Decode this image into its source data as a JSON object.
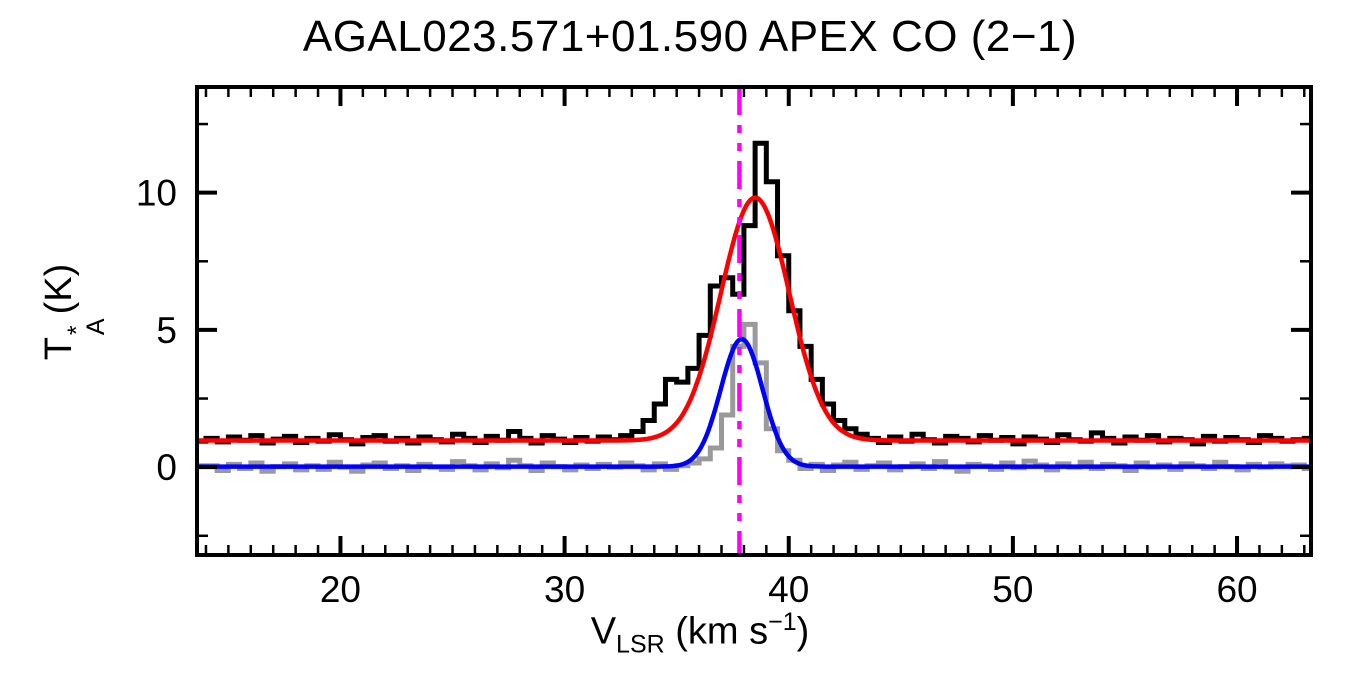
{
  "title": "AGAL023.571+01.590  APEX CO (2−1)",
  "axes": {
    "x": {
      "symbol": "V",
      "subscript": "LSR",
      "unit_prefix": " (km s",
      "unit_exponent": "−1",
      "unit_suffix": ")",
      "tick_labels": [
        "20",
        "30",
        "40",
        "50",
        "60"
      ]
    },
    "y": {
      "symbol": "T",
      "superscript": "*",
      "subscript": "A",
      "unit": "(K)",
      "tick_labels": [
        "0",
        "5",
        "10"
      ]
    }
  },
  "colors": {
    "background": "#ffffff",
    "frame": "#000000",
    "spectrum_main": "#000000",
    "spectrum_secondary": "#9a9a9a",
    "fit_main": "#ff0000",
    "fit_secondary": "#0000ff",
    "velocity_marker": "#ff00ff"
  },
  "chart_data": {
    "type": "line",
    "title": "AGAL023.571+01.590  APEX CO (2−1)",
    "xlabel": "V_LSR (km s^-1)",
    "ylabel": "T_A^* (K)",
    "xlim": [
      13.6,
      63.3
    ],
    "ylim": [
      -3.2,
      13.85
    ],
    "xticks_major": [
      20,
      30,
      40,
      50,
      60
    ],
    "xtick_minor_interval": 1,
    "yticks_major": [
      0,
      5,
      10
    ],
    "ytick_minor_interval": 2.5,
    "grid": false,
    "legend": false,
    "vline": {
      "name": "systemic-velocity-marker",
      "x": 37.8,
      "color": "#ff00ff",
      "style": "dash-dot-dot"
    },
    "series": [
      {
        "name": "co-2-1-spectrum",
        "type": "histogram",
        "color": "#000000",
        "line_width": 5,
        "v0": 13.5,
        "dv": 0.5,
        "values": [
          0.95,
          1.05,
          0.92,
          1.1,
          0.98,
          1.15,
          0.88,
          1.02,
          1.12,
          0.9,
          1.05,
          0.95,
          1.18,
          1.0,
          0.85,
          1.08,
          1.15,
          0.95,
          1.05,
          0.88,
          1.1,
          1.0,
          0.92,
          1.2,
          1.05,
          0.9,
          1.12,
          0.98,
          1.3,
          1.05,
          0.88,
          1.15,
          1.02,
          0.9,
          1.08,
          0.95,
          1.1,
          1.0,
          1.15,
          1.3,
          1.7,
          2.3,
          3.2,
          3.1,
          3.6,
          4.8,
          6.6,
          6.9,
          6.3,
          8.8,
          11.8,
          10.4,
          7.7,
          5.7,
          4.4,
          3.2,
          2.3,
          1.7,
          1.4,
          1.2,
          1.05,
          0.9,
          1.1,
          0.95,
          1.2,
          1.0,
          0.88,
          1.12,
          1.05,
          0.92,
          1.15,
          0.98,
          1.08,
          0.85,
          1.1,
          1.02,
          0.9,
          1.18,
          1.0,
          0.95,
          1.25,
          1.05,
          0.88,
          1.1,
          0.98,
          1.15,
          0.92,
          1.05,
          1.0,
          0.85,
          1.12,
          0.95,
          1.08,
          1.0,
          0.9,
          1.15,
          1.05,
          0.95,
          1.0,
          1.05
        ]
      },
      {
        "name": "secondary-spectrum",
        "type": "histogram",
        "color": "#9a9a9a",
        "line_width": 5,
        "v0": 13.5,
        "dv": 0.5,
        "values": [
          0.05,
          0.05,
          -0.12,
          0.1,
          -0.05,
          0.15,
          -0.15,
          0.02,
          0.12,
          -0.1,
          0.05,
          -0.08,
          0.18,
          0.0,
          -0.15,
          0.08,
          0.15,
          -0.05,
          0.05,
          -0.12,
          0.1,
          0.0,
          -0.08,
          0.2,
          0.05,
          -0.1,
          0.12,
          -0.02,
          0.25,
          0.05,
          -0.12,
          0.15,
          0.02,
          -0.1,
          0.08,
          -0.05,
          0.1,
          0.0,
          0.15,
          0.05,
          -0.1,
          0.12,
          -0.08,
          0.05,
          0.15,
          0.3,
          0.7,
          1.9,
          4.4,
          5.2,
          3.8,
          1.4,
          0.6,
          0.25,
          -0.05,
          0.1,
          -0.12,
          0.08,
          0.18,
          -0.08,
          0.05,
          0.15,
          -0.1,
          0.02,
          0.12,
          -0.05,
          0.2,
          0.0,
          -0.15,
          0.1,
          0.05,
          -0.08,
          0.15,
          -0.02,
          0.22,
          0.08,
          -0.1,
          0.12,
          0.0,
          0.18,
          -0.05,
          0.1,
          0.05,
          -0.12,
          0.15,
          0.0,
          0.08,
          -0.08,
          0.12,
          0.05,
          -0.05,
          0.18,
          0.02,
          -0.1,
          0.1,
          0.0,
          0.12,
          0.05,
          0.08,
          -0.05
        ]
      },
      {
        "name": "co-2-1-gaussian-fit",
        "type": "gaussian",
        "color": "#ff0000",
        "line_width": 4.5,
        "center": 38.5,
        "amplitude": 8.85,
        "fwhm": 3.6,
        "baseline": 0.97
      },
      {
        "name": "secondary-gaussian-fit",
        "type": "gaussian",
        "color": "#0000ff",
        "line_width": 4.5,
        "center": 37.9,
        "amplitude": 4.65,
        "fwhm": 2.2,
        "baseline": 0.02
      }
    ]
  }
}
